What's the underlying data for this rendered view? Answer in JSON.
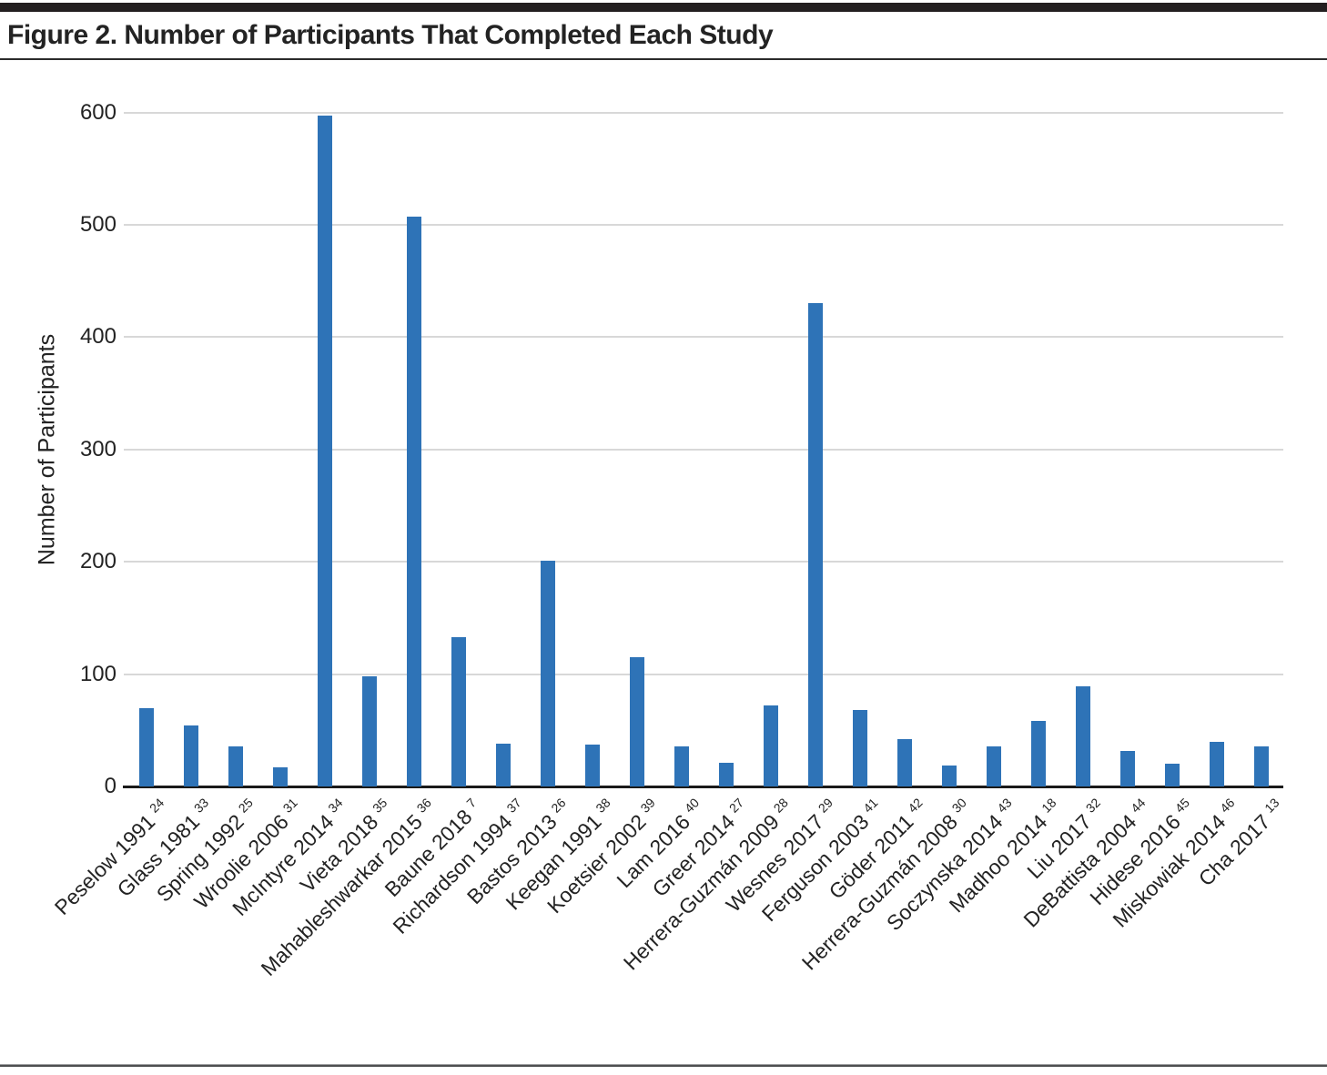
{
  "figure": {
    "title": "Figure 2. Number of Participants That Completed Each Study"
  },
  "chart_data": {
    "type": "bar",
    "title": "Figure 2. Number of Participants That Completed Each Study",
    "xlabel": "",
    "ylabel": "Number of Participants",
    "ylim": [
      0,
      600
    ],
    "yticks": [
      0,
      100,
      200,
      300,
      400,
      500,
      600
    ],
    "grid": "horizontal",
    "legend": "none",
    "colors": {
      "bar": "#2E73B7",
      "gridline": "#D8D8D8",
      "axis": "#1A1A1A",
      "text": "#232323"
    },
    "categories": [
      {
        "label": "Peselow 1991",
        "superscript": "24"
      },
      {
        "label": "Glass 1981",
        "superscript": "33"
      },
      {
        "label": "Spring 1992",
        "superscript": "25"
      },
      {
        "label": "Wroolie 2006",
        "superscript": "31"
      },
      {
        "label": "McIntyre 2014",
        "superscript": "34"
      },
      {
        "label": "Vieta 2018",
        "superscript": "35"
      },
      {
        "label": "Mahableshwarkar 2015",
        "superscript": "36"
      },
      {
        "label": "Baune 2018",
        "superscript": "7"
      },
      {
        "label": "Richardson 1994",
        "superscript": "37"
      },
      {
        "label": "Bastos 2013",
        "superscript": "26"
      },
      {
        "label": "Keegan 1991",
        "superscript": "38"
      },
      {
        "label": "Koetsier 2002",
        "superscript": "39"
      },
      {
        "label": "Lam 2016",
        "superscript": "40"
      },
      {
        "label": "Greer 2014",
        "superscript": "27"
      },
      {
        "label": "Herrera-Guzmán 2009",
        "superscript": "28"
      },
      {
        "label": "Wesnes 2017",
        "superscript": "29"
      },
      {
        "label": "Ferguson 2003",
        "superscript": "41"
      },
      {
        "label": "Göder 2011",
        "superscript": "42"
      },
      {
        "label": "Herrera-Guzmán 2008",
        "superscript": "30"
      },
      {
        "label": "Soczynska 2014",
        "superscript": "43"
      },
      {
        "label": "Madhoo 2014",
        "superscript": "18"
      },
      {
        "label": "Liu 2017",
        "superscript": "32"
      },
      {
        "label": "DeBattista 2004",
        "superscript": "44"
      },
      {
        "label": "Hidese 2016",
        "superscript": "45"
      },
      {
        "label": "Miskowiak 2014",
        "superscript": "46"
      },
      {
        "label": "Cha 2017",
        "superscript": "13"
      }
    ],
    "values": [
      70,
      54,
      36,
      17,
      597,
      98,
      507,
      133,
      38,
      201,
      37,
      115,
      36,
      21,
      72,
      430,
      68,
      42,
      19,
      36,
      58,
      89,
      32,
      20,
      40,
      36
    ]
  }
}
